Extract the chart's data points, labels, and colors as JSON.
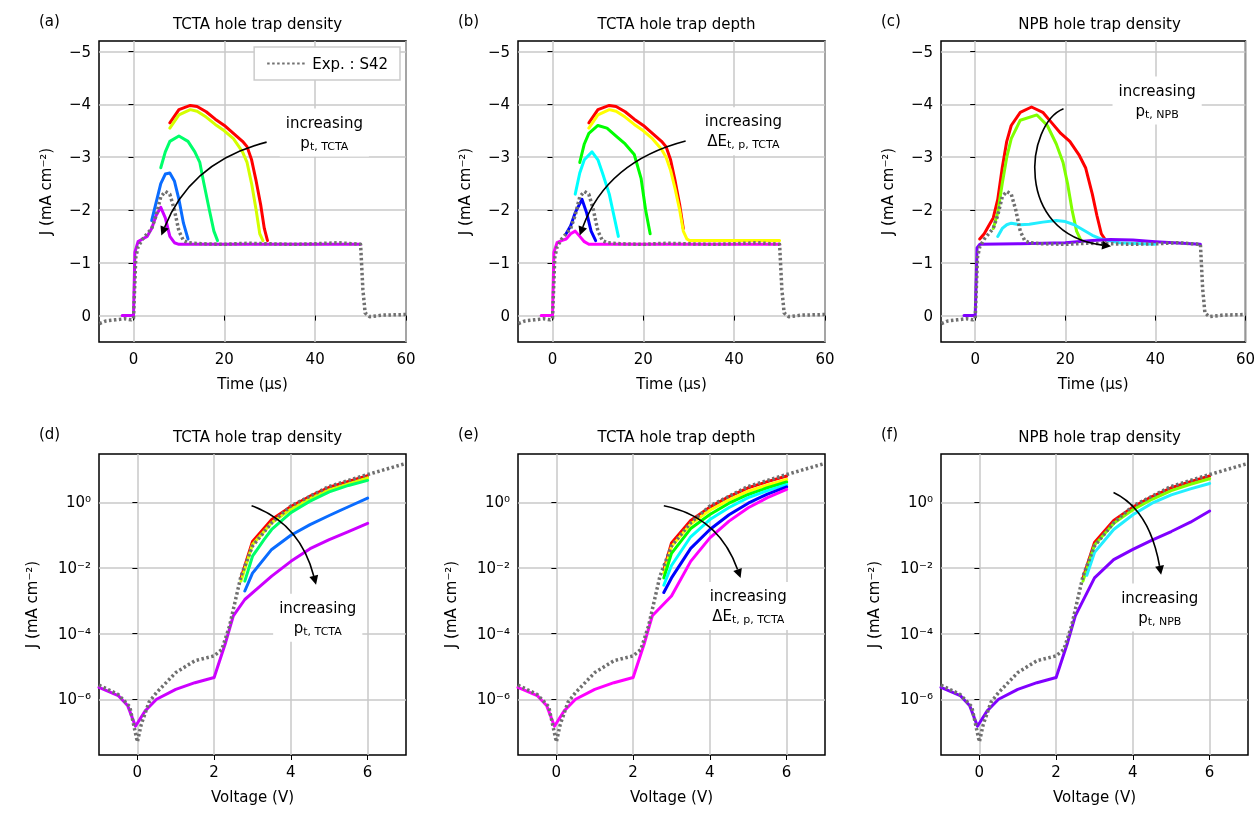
{
  "chart_data": [
    {
      "type": "line",
      "title": "TCTA hole trap density",
      "xlabel": "Time (μs)",
      "ylabel": "J (mA cm⁻²)",
      "xlim": [
        -7.6,
        60
      ],
      "xticks": [
        0,
        20,
        40,
        60
      ],
      "ylim": [
        0.5,
        -5.2
      ],
      "yticks": [
        0,
        -1,
        -2,
        -3,
        -4,
        -5
      ],
      "grid": true,
      "legend": "top right",
      "marker": "none",
      "line_style": "solid",
      "annotations": [
        "(a)",
        "increasing\np$_{t, TCTA}$"
      ],
      "series": [
        {
          "color": "#ff0000",
          "x": [
            8,
            10,
            12.5,
            14,
            16,
            18,
            20,
            22,
            24,
            25,
            26,
            27,
            28,
            28.8,
            29.5
          ],
          "values": [
            -3.65,
            -3.9,
            -3.98,
            -3.96,
            -3.86,
            -3.72,
            -3.6,
            -3.45,
            -3.3,
            -3.2,
            -2.95,
            -2.55,
            -2.1,
            -1.65,
            -1.42
          ]
        },
        {
          "color": "#d4ff00",
          "x": [
            8,
            10,
            12.5,
            14,
            16,
            18,
            20,
            22,
            24,
            25,
            26,
            27,
            27.8,
            28.5
          ],
          "values": [
            -3.55,
            -3.8,
            -3.9,
            -3.87,
            -3.76,
            -3.62,
            -3.5,
            -3.35,
            -3.1,
            -2.9,
            -2.5,
            -2.0,
            -1.55,
            -1.42
          ]
        },
        {
          "color": "#00ff6a",
          "x": [
            6,
            7,
            8,
            10,
            12,
            13.5,
            14.6,
            15.5,
            16.7,
            17.7,
            18.5
          ],
          "values": [
            -2.8,
            -3.1,
            -3.3,
            -3.4,
            -3.3,
            -3.1,
            -2.9,
            -2.5,
            -2.0,
            -1.6,
            -1.42
          ]
        },
        {
          "color": "#0a6cff",
          "x": [
            4,
            5,
            6,
            7,
            8,
            9,
            10,
            11,
            12
          ],
          "values": [
            -1.8,
            -2.15,
            -2.5,
            -2.68,
            -2.7,
            -2.55,
            -2.2,
            -1.75,
            -1.45
          ]
        },
        {
          "color": "#cc00ff",
          "x": [
            -2.5,
            0,
            0.3,
            1,
            2,
            3,
            4,
            5,
            6,
            7,
            8,
            9,
            10,
            30,
            50
          ],
          "values": [
            0,
            0,
            -1.2,
            -1.4,
            -1.45,
            -1.5,
            -1.65,
            -1.9,
            -2.05,
            -1.85,
            -1.5,
            -1.38,
            -1.35,
            -1.35,
            -1.35
          ]
        },
        {
          "name": "Exp. : S42",
          "color": "#707070",
          "line_style": "dotted",
          "x": [
            -7.5,
            -6,
            -4,
            -2,
            -0.5,
            0,
            0.5,
            1,
            2,
            3,
            4,
            5,
            6,
            7,
            8,
            9,
            10,
            11,
            12,
            15,
            20,
            25,
            30,
            35,
            40,
            45,
            50,
            50.5,
            51,
            52,
            55,
            60
          ],
          "values": [
            0.15,
            0.1,
            0.08,
            0.06,
            0.08,
            0.05,
            -1.1,
            -1.3,
            -1.45,
            -1.55,
            -1.65,
            -1.9,
            -2.25,
            -2.35,
            -2.3,
            -2.0,
            -1.6,
            -1.42,
            -1.38,
            -1.36,
            -1.35,
            -1.37,
            -1.36,
            -1.35,
            -1.36,
            -1.38,
            -1.35,
            -0.5,
            -0.05,
            0.02,
            -0.01,
            -0.02
          ]
        }
      ]
    },
    {
      "type": "line",
      "title": "TCTA hole trap depth",
      "xlabel": "Time (μs)",
      "ylabel": "J (mA cm⁻²)",
      "xlim": [
        -7.6,
        60
      ],
      "xticks": [
        0,
        20,
        40,
        60
      ],
      "ylim": [
        0.5,
        -5.2
      ],
      "yticks": [
        0,
        -1,
        -2,
        -3,
        -4,
        -5
      ],
      "grid": true,
      "marker": "none",
      "line_style": "solid",
      "annotations": [
        "(b)",
        "increasing\nΔE$_{t, p, TCTA}$"
      ],
      "series": [
        {
          "color": "#ff0000",
          "x": [
            8,
            10,
            12.5,
            14,
            16,
            18,
            20,
            22,
            24,
            25,
            26,
            27,
            28,
            28.8
          ],
          "values": [
            -3.65,
            -3.9,
            -3.98,
            -3.96,
            -3.86,
            -3.72,
            -3.6,
            -3.45,
            -3.3,
            -3.2,
            -2.95,
            -2.55,
            -2.1,
            -1.65
          ]
        },
        {
          "color": "#ffff00",
          "x": [
            8,
            10,
            12.5,
            14,
            16,
            18,
            20,
            22,
            24,
            25,
            26,
            27,
            28,
            28.8,
            29.6,
            30.2,
            40,
            50
          ],
          "values": [
            -3.55,
            -3.8,
            -3.9,
            -3.87,
            -3.76,
            -3.62,
            -3.5,
            -3.35,
            -3.15,
            -3.0,
            -2.75,
            -2.4,
            -2.0,
            -1.6,
            -1.45,
            -1.42,
            -1.42,
            -1.42
          ]
        },
        {
          "color": "#00ff00",
          "x": [
            6,
            7,
            8,
            10,
            12,
            14,
            16,
            18,
            19.5,
            20.5,
            21.5
          ],
          "values": [
            -2.9,
            -3.25,
            -3.45,
            -3.6,
            -3.55,
            -3.4,
            -3.25,
            -3.05,
            -2.6,
            -2.0,
            -1.55
          ]
        },
        {
          "color": "#00ffff",
          "x": [
            5,
            6,
            7,
            8.7,
            10,
            11,
            12.5,
            13.5,
            14.5
          ],
          "values": [
            -2.3,
            -2.7,
            -2.95,
            -3.1,
            -2.95,
            -2.7,
            -2.3,
            -1.9,
            -1.5
          ]
        },
        {
          "color": "#0000ff",
          "x": [
            3,
            4,
            5,
            6.5,
            7.5,
            8.5,
            9.5
          ],
          "values": [
            -1.55,
            -1.7,
            -1.95,
            -2.2,
            -1.95,
            -1.6,
            -1.42
          ]
        },
        {
          "color": "#ff00ff",
          "x": [
            -2.5,
            0,
            0.3,
            1,
            2,
            3,
            4,
            5,
            6,
            7,
            8,
            30,
            50
          ],
          "values": [
            0,
            0,
            -1.2,
            -1.38,
            -1.42,
            -1.45,
            -1.55,
            -1.6,
            -1.5,
            -1.4,
            -1.35,
            -1.35,
            -1.35
          ]
        },
        {
          "color": "#707070",
          "line_style": "dotted",
          "x": [
            -7.5,
            -6,
            -4,
            -2,
            -0.5,
            0,
            0.5,
            1,
            2,
            3,
            4,
            5,
            6,
            7,
            8,
            9,
            10,
            11,
            12,
            15,
            20,
            25,
            30,
            35,
            40,
            45,
            50,
            50.5,
            51,
            52,
            55,
            60
          ],
          "values": [
            0.15,
            0.1,
            0.08,
            0.06,
            0.08,
            0.05,
            -1.1,
            -1.3,
            -1.45,
            -1.55,
            -1.65,
            -1.9,
            -2.25,
            -2.35,
            -2.3,
            -2.0,
            -1.6,
            -1.42,
            -1.38,
            -1.36,
            -1.35,
            -1.37,
            -1.36,
            -1.35,
            -1.36,
            -1.38,
            -1.35,
            -0.5,
            -0.05,
            0.02,
            -0.01,
            -0.02
          ]
        }
      ]
    },
    {
      "type": "line",
      "title": "NPB hole trap density",
      "xlabel": "Time (μs)",
      "ylabel": "J (mA cm⁻²)",
      "xlim": [
        -7.6,
        60
      ],
      "xticks": [
        0,
        20,
        40,
        60
      ],
      "ylim": [
        0.5,
        -5.2
      ],
      "yticks": [
        0,
        -1,
        -2,
        -3,
        -4,
        -5
      ],
      "grid": true,
      "marker": "none",
      "line_style": "solid",
      "annotations": [
        "(c)",
        "increasing\np$_{t, NPB}$"
      ],
      "series": [
        {
          "color": "#ff0000",
          "x": [
            1,
            2,
            3,
            4,
            5,
            6,
            7,
            8,
            10,
            12.5,
            15,
            17,
            19,
            21,
            23,
            24.5,
            26,
            27,
            28,
            29
          ],
          "values": [
            -1.45,
            -1.55,
            -1.7,
            -1.85,
            -2.2,
            -2.8,
            -3.3,
            -3.6,
            -3.85,
            -3.95,
            -3.85,
            -3.65,
            -3.45,
            -3.3,
            -3.05,
            -2.8,
            -2.3,
            -1.9,
            -1.55,
            -1.42
          ]
        },
        {
          "color": "#80ff00",
          "x": [
            4,
            5,
            6,
            7,
            8,
            10,
            13.7,
            16,
            18,
            19.5,
            20.5,
            21.5,
            22.5,
            23.5
          ],
          "values": [
            -1.65,
            -1.95,
            -2.5,
            -3.0,
            -3.35,
            -3.7,
            -3.8,
            -3.6,
            -3.25,
            -2.9,
            -2.5,
            -2.0,
            -1.6,
            -1.42
          ]
        },
        {
          "color": "#22eeff",
          "x": [
            5,
            6,
            7,
            8,
            10,
            12,
            15,
            18,
            20,
            22,
            24,
            26,
            28,
            32,
            40
          ],
          "values": [
            -1.5,
            -1.65,
            -1.72,
            -1.75,
            -1.72,
            -1.73,
            -1.77,
            -1.8,
            -1.78,
            -1.72,
            -1.62,
            -1.52,
            -1.45,
            -1.38,
            -1.35
          ]
        },
        {
          "color": "#8000ff",
          "x": [
            -2.5,
            0,
            0.4,
            1,
            10,
            20,
            26,
            30,
            35,
            40,
            50
          ],
          "values": [
            0,
            0,
            -1.28,
            -1.35,
            -1.36,
            -1.38,
            -1.42,
            -1.44,
            -1.43,
            -1.4,
            -1.35
          ]
        },
        {
          "color": "#707070",
          "line_style": "dotted",
          "x": [
            -7.5,
            -6,
            -4,
            -2,
            -0.5,
            0,
            0.5,
            1,
            2,
            3,
            4,
            5,
            6,
            7,
            8,
            9,
            10,
            11,
            12,
            15,
            20,
            25,
            30,
            35,
            40,
            45,
            50,
            50.5,
            51,
            52,
            55,
            60
          ],
          "values": [
            0.15,
            0.1,
            0.08,
            0.06,
            0.08,
            0.05,
            -1.1,
            -1.3,
            -1.45,
            -1.55,
            -1.65,
            -1.9,
            -2.25,
            -2.35,
            -2.3,
            -2.0,
            -1.6,
            -1.42,
            -1.38,
            -1.36,
            -1.35,
            -1.37,
            -1.36,
            -1.35,
            -1.36,
            -1.38,
            -1.35,
            -0.5,
            -0.05,
            0.02,
            -0.01,
            -0.02
          ]
        }
      ]
    },
    {
      "type": "line",
      "title": "TCTA hole trap density",
      "xlabel": "Voltage (V)",
      "ylabel": "J (mA cm⁻²)",
      "log": true,
      "xlim": [
        -1,
        7
      ],
      "xticks": [
        0,
        2,
        4,
        6
      ],
      "ylim": [
        2e-08,
        30
      ],
      "yticks": [
        {
          "value": 1,
          "label": "10⁰"
        },
        {
          "value": 0.01,
          "label": "10⁻²"
        },
        {
          "value": 0.0001,
          "label": "10⁻⁴"
        },
        {
          "value": 1e-06,
          "label": "10⁻⁶"
        }
      ],
      "grid": true,
      "marker": "none",
      "line_style": "solid",
      "annotations": [
        "(d)",
        "increasing\np$_{t, TCTA}$"
      ],
      "series": [
        {
          "color": "#ff0000",
          "x": [
            2.7,
            3,
            3.5,
            4,
            4.5,
            5,
            5.5,
            6
          ],
          "values": [
            0.005,
            0.065,
            0.3,
            0.75,
            1.55,
            2.9,
            4.4,
            6.6
          ]
        },
        {
          "color": "#d4ff00",
          "x": [
            2.7,
            3,
            3.5,
            4,
            4.5,
            5,
            5.5,
            6
          ],
          "values": [
            0.004,
            0.052,
            0.24,
            0.62,
            1.3,
            2.4,
            3.7,
            5.6
          ]
        },
        {
          "color": "#00ff6a",
          "x": [
            2.8,
            3,
            3.3,
            3.5,
            4,
            4.5,
            5,
            5.5,
            6
          ],
          "values": [
            0.004,
            0.023,
            0.074,
            0.15,
            0.49,
            1.1,
            2.1,
            3.3,
            4.7
          ]
        },
        {
          "color": "#0a6cff",
          "x": [
            2.8,
            3,
            3.5,
            4,
            4.5,
            5,
            5.5,
            6
          ],
          "values": [
            0.002,
            0.007,
            0.037,
            0.1,
            0.21,
            0.4,
            0.74,
            1.35
          ]
        },
        {
          "color": "#cc00ff",
          "x": [
            -1,
            -0.5,
            -0.25,
            -0.05,
            0.2,
            0.5,
            1,
            1.5,
            2,
            2.3,
            2.5,
            2.8,
            3.2,
            3.5,
            4,
            4.5,
            5,
            5.5,
            6
          ],
          "values": [
            2.3e-06,
            1.3e-06,
            6.3e-07,
            1.5e-07,
            4.4e-07,
            1e-06,
            2e-06,
            3.2e-06,
            4.6e-06,
            5.4e-05,
            0.00035,
            0.0011,
            0.0028,
            0.0057,
            0.016,
            0.039,
            0.074,
            0.13,
            0.23
          ]
        },
        {
          "color": "#707070",
          "line_style": "dotted",
          "x": [
            -1,
            -0.5,
            -0.2,
            0,
            0.1,
            0.3,
            0.5,
            1,
            1.5,
            2,
            2.2,
            2.4,
            2.7,
            3,
            3.5,
            4,
            5,
            6,
            7
          ],
          "values": [
            2.7e-06,
            1.4e-06,
            6e-07,
            5e-08,
            1.7e-07,
            8e-07,
            1.6e-06,
            6.5e-06,
            1.5e-05,
            2.1e-05,
            3.3e-05,
            0.00017,
            0.0057,
            0.047,
            0.24,
            0.78,
            3.1,
            7.1,
            15.5
          ]
        }
      ]
    },
    {
      "type": "line",
      "title": "TCTA hole trap depth",
      "xlabel": "Voltage (V)",
      "ylabel": "J (mA cm⁻²)",
      "log": true,
      "xlim": [
        -1,
        7
      ],
      "xticks": [
        0,
        2,
        4,
        6
      ],
      "ylim": [
        2e-08,
        30
      ],
      "yticks": [
        {
          "value": 1,
          "label": "10⁰"
        },
        {
          "value": 0.01,
          "label": "10⁻²"
        },
        {
          "value": 0.0001,
          "label": "10⁻⁴"
        },
        {
          "value": 1e-06,
          "label": "10⁻⁶"
        }
      ],
      "grid": true,
      "marker": "none",
      "line_style": "solid",
      "annotations": [
        "(e)",
        "increasing\nΔE$_{t, p, TCTA}$"
      ],
      "series": [
        {
          "color": "#ff0000",
          "x": [
            2.8,
            3,
            3.5,
            4,
            4.5,
            5,
            5.5,
            6
          ],
          "values": [
            0.009,
            0.058,
            0.28,
            0.72,
            1.5,
            2.8,
            4.3,
            6.4
          ]
        },
        {
          "color": "#ffff00",
          "x": [
            2.8,
            3,
            3.5,
            4,
            4.5,
            5,
            5.5,
            6
          ],
          "values": [
            0.007,
            0.045,
            0.22,
            0.58,
            1.2,
            2.2,
            3.4,
            5.0
          ]
        },
        {
          "color": "#00ff00",
          "x": [
            2.8,
            3,
            3.5,
            4,
            4.5,
            5,
            5.5,
            6
          ],
          "values": [
            0.005,
            0.028,
            0.16,
            0.43,
            0.95,
            1.75,
            2.8,
            4.2
          ]
        },
        {
          "color": "#00ffff",
          "x": [
            2.8,
            3,
            3.5,
            4,
            4.5,
            5,
            5.5,
            6
          ],
          "values": [
            0.003,
            0.012,
            0.09,
            0.3,
            0.7,
            1.4,
            2.3,
            3.5
          ]
        },
        {
          "color": "#0000ff",
          "x": [
            2.8,
            3,
            3.5,
            4,
            4.5,
            5,
            5.5,
            6
          ],
          "values": [
            0.0018,
            0.005,
            0.04,
            0.15,
            0.42,
            0.95,
            1.8,
            3.0
          ]
        },
        {
          "color": "#ff00ff",
          "x": [
            -1,
            -0.5,
            -0.25,
            -0.05,
            0.2,
            0.5,
            1,
            1.5,
            2,
            2.3,
            2.5,
            3,
            3.5,
            4,
            4.5,
            5,
            5.5,
            6
          ],
          "values": [
            2.3e-06,
            1.3e-06,
            6.3e-07,
            1.5e-07,
            4.4e-07,
            1e-06,
            2e-06,
            3.2e-06,
            4.6e-06,
            5.4e-05,
            0.00035,
            0.0014,
            0.016,
            0.083,
            0.27,
            0.69,
            1.4,
            2.5
          ]
        },
        {
          "color": "#707070",
          "line_style": "dotted",
          "x": [
            -1,
            -0.5,
            -0.2,
            0,
            0.1,
            0.3,
            0.5,
            1,
            1.5,
            2,
            2.2,
            2.4,
            2.7,
            3,
            3.5,
            4,
            5,
            6,
            7
          ],
          "values": [
            2.7e-06,
            1.4e-06,
            6e-07,
            5e-08,
            1.7e-07,
            8e-07,
            1.6e-06,
            6.5e-06,
            1.5e-05,
            2.1e-05,
            3.3e-05,
            0.00017,
            0.0057,
            0.047,
            0.24,
            0.78,
            3.1,
            7.1,
            15.5
          ]
        }
      ]
    },
    {
      "type": "line",
      "title": "NPB hole trap density",
      "xlabel": "Voltage (V)",
      "ylabel": "J (mA cm⁻²)",
      "log": true,
      "xlim": [
        -1,
        7
      ],
      "xticks": [
        0,
        2,
        4,
        6
      ],
      "ylim": [
        2e-08,
        30
      ],
      "yticks": [
        {
          "value": 1,
          "label": "10⁰"
        },
        {
          "value": 0.01,
          "label": "10⁻²"
        },
        {
          "value": 0.0001,
          "label": "10⁻⁴"
        },
        {
          "value": 1e-06,
          "label": "10⁻⁶"
        }
      ],
      "grid": true,
      "marker": "none",
      "line_style": "solid",
      "annotations": [
        "(f)",
        "increasing\np$_{t, NPB}$"
      ],
      "series": [
        {
          "color": "#ff0000",
          "x": [
            2.7,
            3,
            3.5,
            4,
            4.5,
            5,
            5.5,
            6
          ],
          "values": [
            0.005,
            0.06,
            0.28,
            0.72,
            1.5,
            2.8,
            4.3,
            6.4
          ]
        },
        {
          "color": "#80ff00",
          "x": [
            2.7,
            3,
            3.5,
            4,
            4.5,
            5,
            5.5,
            6
          ],
          "values": [
            0.004,
            0.05,
            0.23,
            0.6,
            1.25,
            2.3,
            3.6,
            5.3
          ]
        },
        {
          "color": "#22eeff",
          "x": [
            2.8,
            3,
            3.5,
            4,
            4.5,
            5,
            5.5,
            6
          ],
          "values": [
            0.006,
            0.03,
            0.15,
            0.42,
            0.95,
            1.7,
            2.6,
            3.8
          ]
        },
        {
          "color": "#8000ff",
          "x": [
            -1,
            -0.5,
            -0.25,
            -0.05,
            0.2,
            0.5,
            1,
            1.5,
            2,
            2.3,
            2.5,
            3,
            3.5,
            4,
            4.5,
            5,
            5.5,
            6
          ],
          "values": [
            2.3e-06,
            1.3e-06,
            6.3e-07,
            1.5e-07,
            4.4e-07,
            1e-06,
            2e-06,
            3.2e-06,
            4.6e-06,
            5.4e-05,
            0.00035,
            0.005,
            0.018,
            0.037,
            0.071,
            0.13,
            0.25,
            0.55
          ]
        },
        {
          "color": "#707070",
          "line_style": "dotted",
          "x": [
            -1,
            -0.5,
            -0.2,
            0,
            0.1,
            0.3,
            0.5,
            1,
            1.5,
            2,
            2.2,
            2.4,
            2.7,
            3,
            3.5,
            4,
            5,
            6,
            7
          ],
          "values": [
            2.7e-06,
            1.4e-06,
            6e-07,
            5e-08,
            1.7e-07,
            8e-07,
            1.6e-06,
            6.5e-06,
            1.5e-05,
            2.1e-05,
            3.3e-05,
            0.00017,
            0.0057,
            0.047,
            0.24,
            0.78,
            3.1,
            7.1,
            15.5
          ]
        }
      ]
    }
  ]
}
